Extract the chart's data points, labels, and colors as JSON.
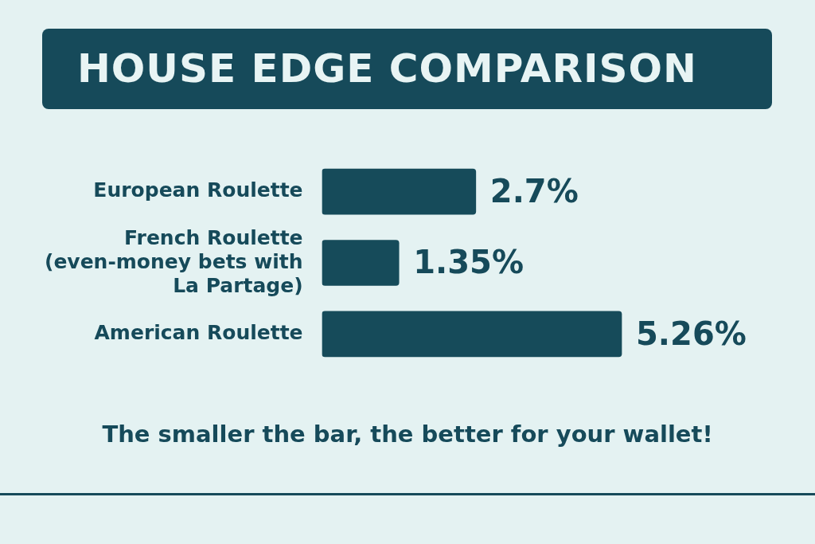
{
  "chart_data": {
    "type": "bar",
    "orientation": "horizontal",
    "title": "HOUSE EDGE COMPARISON",
    "categories": [
      "European Roulette",
      "French Roulette (even-money bets with La Partage)",
      "American Roulette"
    ],
    "values": [
      2.7,
      1.35,
      5.26
    ],
    "color": "#164b5a",
    "value_labels": [
      "2.7%",
      "1.35%",
      "5.26%"
    ],
    "annotations": [
      "The smaller the bar, the better for your wallet!"
    ],
    "legend": false,
    "tick_labels": "y"
  }
}
